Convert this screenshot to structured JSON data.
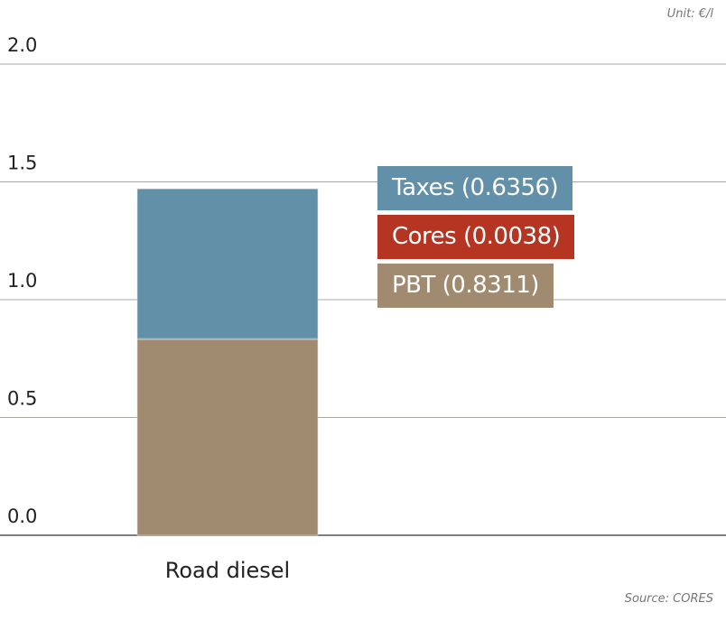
{
  "unit_label": "Unit: €/l",
  "source_label": "Source: CORES",
  "chart_data": {
    "type": "bar",
    "stacked": true,
    "categories": [
      "Road diesel"
    ],
    "series": [
      {
        "name": "PBT",
        "label": "PBT (0.8311)",
        "values": [
          0.8311
        ],
        "color": "#a08a70"
      },
      {
        "name": "Cores",
        "label": "Cores (0.0038)",
        "values": [
          0.0038
        ],
        "color": "#b53522"
      },
      {
        "name": "Taxes",
        "label": "Taxes (0.6356)",
        "values": [
          0.6356
        ],
        "color": "#6290a8"
      }
    ],
    "yticks": [
      "0.0",
      "0.5",
      "1.0",
      "1.5",
      "2.0"
    ],
    "ylim": [
      0,
      2
    ],
    "ylabel": "",
    "xlabel": "",
    "grid": true,
    "legend_position": "right"
  }
}
